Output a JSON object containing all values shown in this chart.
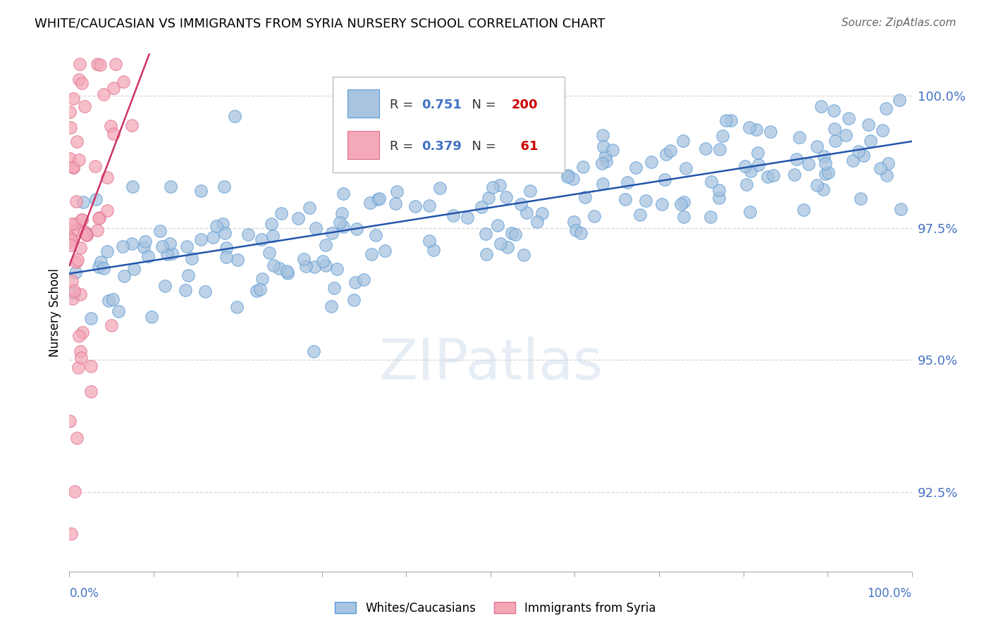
{
  "title": "WHITE/CAUCASIAN VS IMMIGRANTS FROM SYRIA NURSERY SCHOOL CORRELATION CHART",
  "source": "Source: ZipAtlas.com",
  "ylabel": "Nursery School",
  "ymin": 91.0,
  "ymax": 100.8,
  "xmin": 0.0,
  "xmax": 100.0,
  "blue_color": "#a8c4e0",
  "blue_edge_color": "#5b9bd5",
  "pink_color": "#f4a8b8",
  "pink_edge_color": "#e07090",
  "trend_blue_color": "#2255aa",
  "trend_pink_color": "#cc3366",
  "legend_R1": "0.751",
  "legend_N1": "200",
  "legend_R2": "0.379",
  "legend_N2": "61",
  "watermark": "ZIPatlas",
  "legend_label1": "Whites/Caucasians",
  "legend_label2": "Immigrants from Syria",
  "blue_R": 0.751,
  "blue_N": 200,
  "pink_R": 0.379,
  "pink_N": 61,
  "seed": 42,
  "ytick_positions": [
    92.5,
    95.0,
    97.5,
    100.0
  ],
  "ytick_labels": [
    "92.5%",
    "95.0%",
    "97.5%",
    "100.0%"
  ],
  "value_color": "#4472c4",
  "n_color": "#cc0000"
}
